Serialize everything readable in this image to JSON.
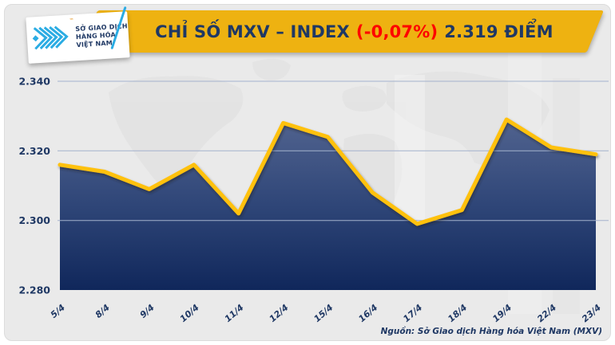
{
  "header": {
    "logo_card": {
      "brand_lines": [
        "SỞ GIAO DỊCH",
        "HÀNG HÓA",
        "VIỆT NAM"
      ],
      "trademark": "™",
      "mark_color": "#2BACE3",
      "text_color": "#1F3864"
    },
    "banner": {
      "title_prefix": "CHỈ SỐ MXV – INDEX",
      "title_change": "(-0,07%)",
      "title_suffix": "2.319 ĐIỂM",
      "background_color": "#EEB211",
      "title_color": "#1F3864",
      "change_color": "#FE0000"
    }
  },
  "chart_data": {
    "type": "area",
    "title": "CHỈ SỐ MXV – INDEX (-0,07%) 2.319 ĐIỂM",
    "categories": [
      "5/4",
      "8/4",
      "9/4",
      "10/4",
      "11/4",
      "12/4",
      "15/4",
      "16/4",
      "17/4",
      "18/4",
      "19/4",
      "22/4",
      "23/4"
    ],
    "values": [
      2316,
      2314,
      2309,
      2316,
      2302,
      2328,
      2324,
      2308,
      2299,
      2303,
      2329,
      2321,
      2319
    ],
    "unit": "điểm",
    "latest_value_label": "2.319",
    "change_label": "(-0,07%)",
    "ylim": [
      2280,
      2340
    ],
    "yticks": [
      {
        "value": 2280,
        "label": "2.280"
      },
      {
        "value": 2300,
        "label": "2.300"
      },
      {
        "value": 2320,
        "label": "2.320"
      },
      {
        "value": 2340,
        "label": "2.340"
      }
    ],
    "xlabel": "",
    "ylabel": "",
    "grid": true,
    "legend": false,
    "styles": {
      "line_color": "#FFC10E",
      "fill_top": "#51638F",
      "fill_mid": "#2F4678",
      "fill_bottom": "#10275B",
      "grid_color": "#A4B2CD",
      "axis_label_color": "#1F3864"
    }
  },
  "footer": {
    "source": "Nguồn: Sở Giao dịch Hàng hóa Việt Nam (MXV)"
  }
}
